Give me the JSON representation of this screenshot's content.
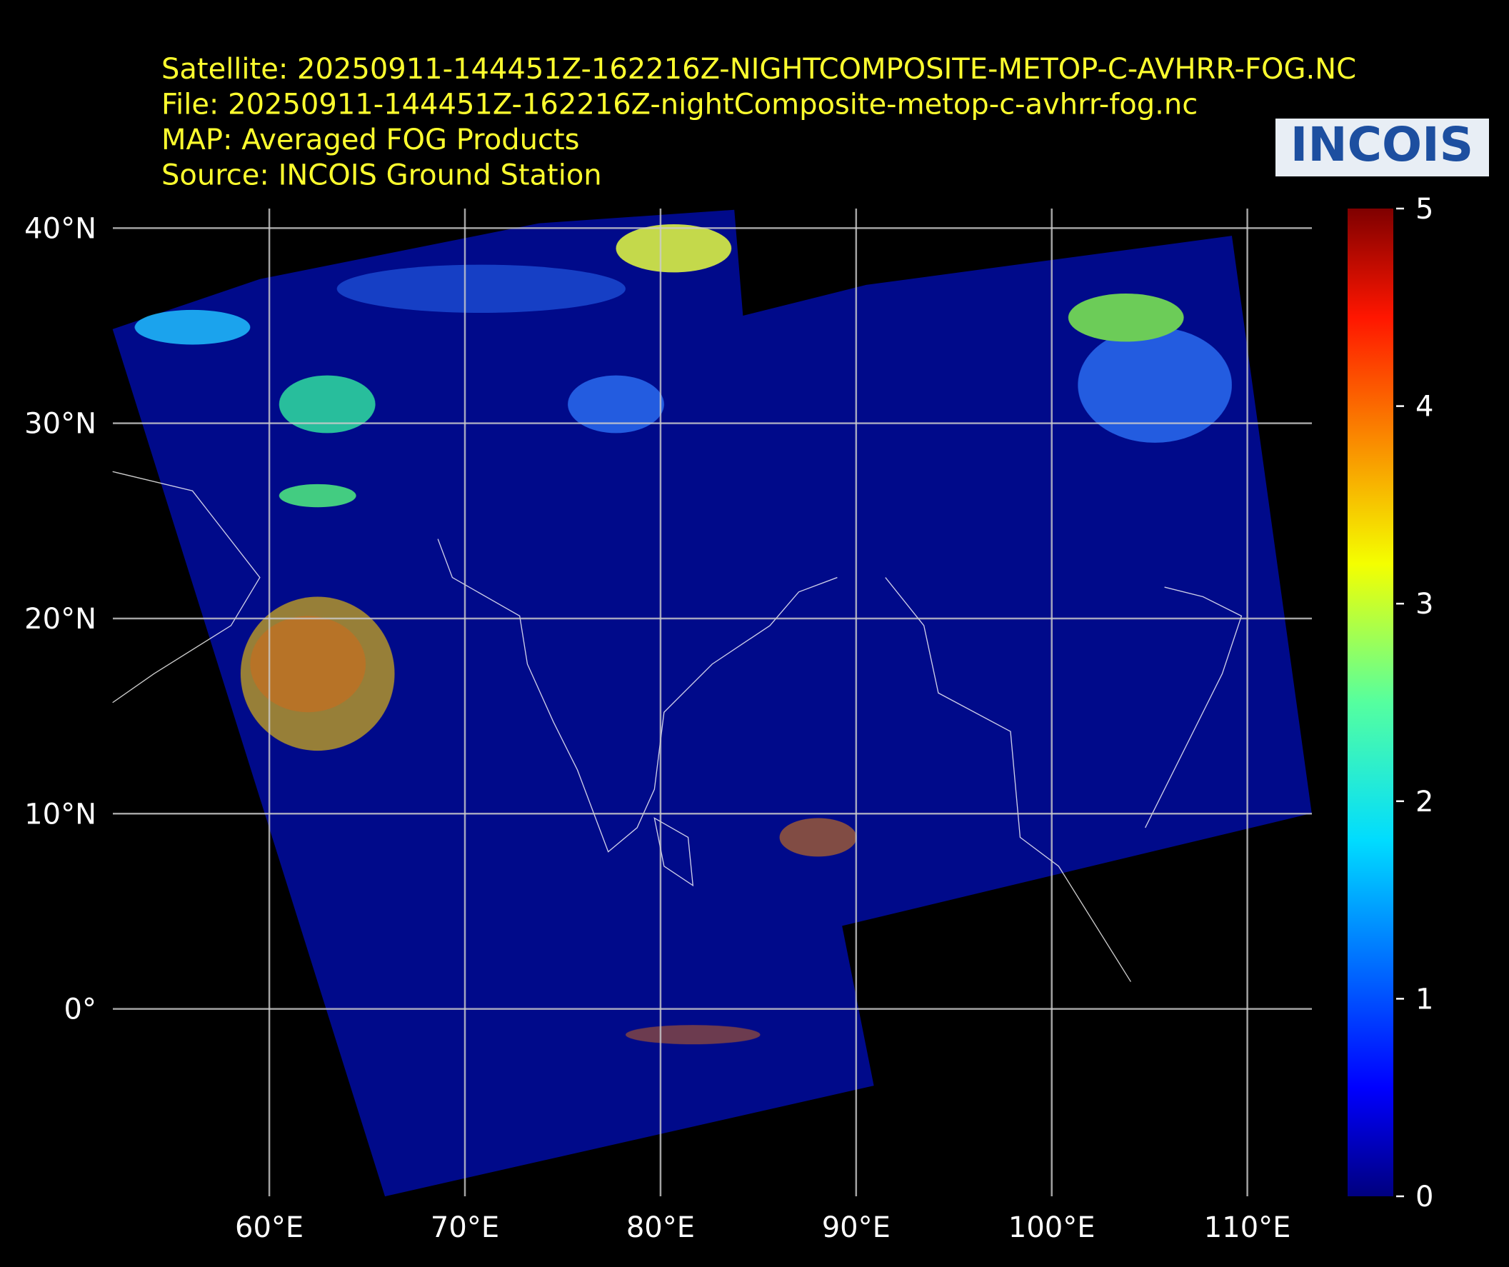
{
  "header": {
    "lines": [
      "Satellite: 20250911-144451Z-162216Z-NIGHTCOMPOSITE-METOP-C-AVHRR-FOG.NC",
      "File: 20250911-144451Z-162216Z-nightComposite-metop-c-avhrr-fog.nc",
      "MAP: Averaged FOG Products",
      "Source: INCOIS Ground Station"
    ]
  },
  "logo": "INCOIS",
  "map": {
    "lon_range": [
      52,
      113.3
    ],
    "lat_range": [
      -9.6,
      41
    ],
    "lon_ticks": [
      {
        "value": 60,
        "label": "60°E"
      },
      {
        "value": 70,
        "label": "70°E"
      },
      {
        "value": 80,
        "label": "80°E"
      },
      {
        "value": 90,
        "label": "90°E"
      },
      {
        "value": 100,
        "label": "100°E"
      },
      {
        "value": 110,
        "label": "110°E"
      }
    ],
    "lat_ticks": [
      {
        "value": 0,
        "label": "0°"
      },
      {
        "value": 10,
        "label": "10°N"
      },
      {
        "value": 20,
        "label": "20°N"
      },
      {
        "value": 30,
        "label": "30°N"
      },
      {
        "value": 40,
        "label": "40°N"
      }
    ]
  },
  "colorbar": {
    "range": [
      0,
      5
    ],
    "ticks": [
      0,
      1,
      2,
      3,
      4,
      5
    ]
  }
}
